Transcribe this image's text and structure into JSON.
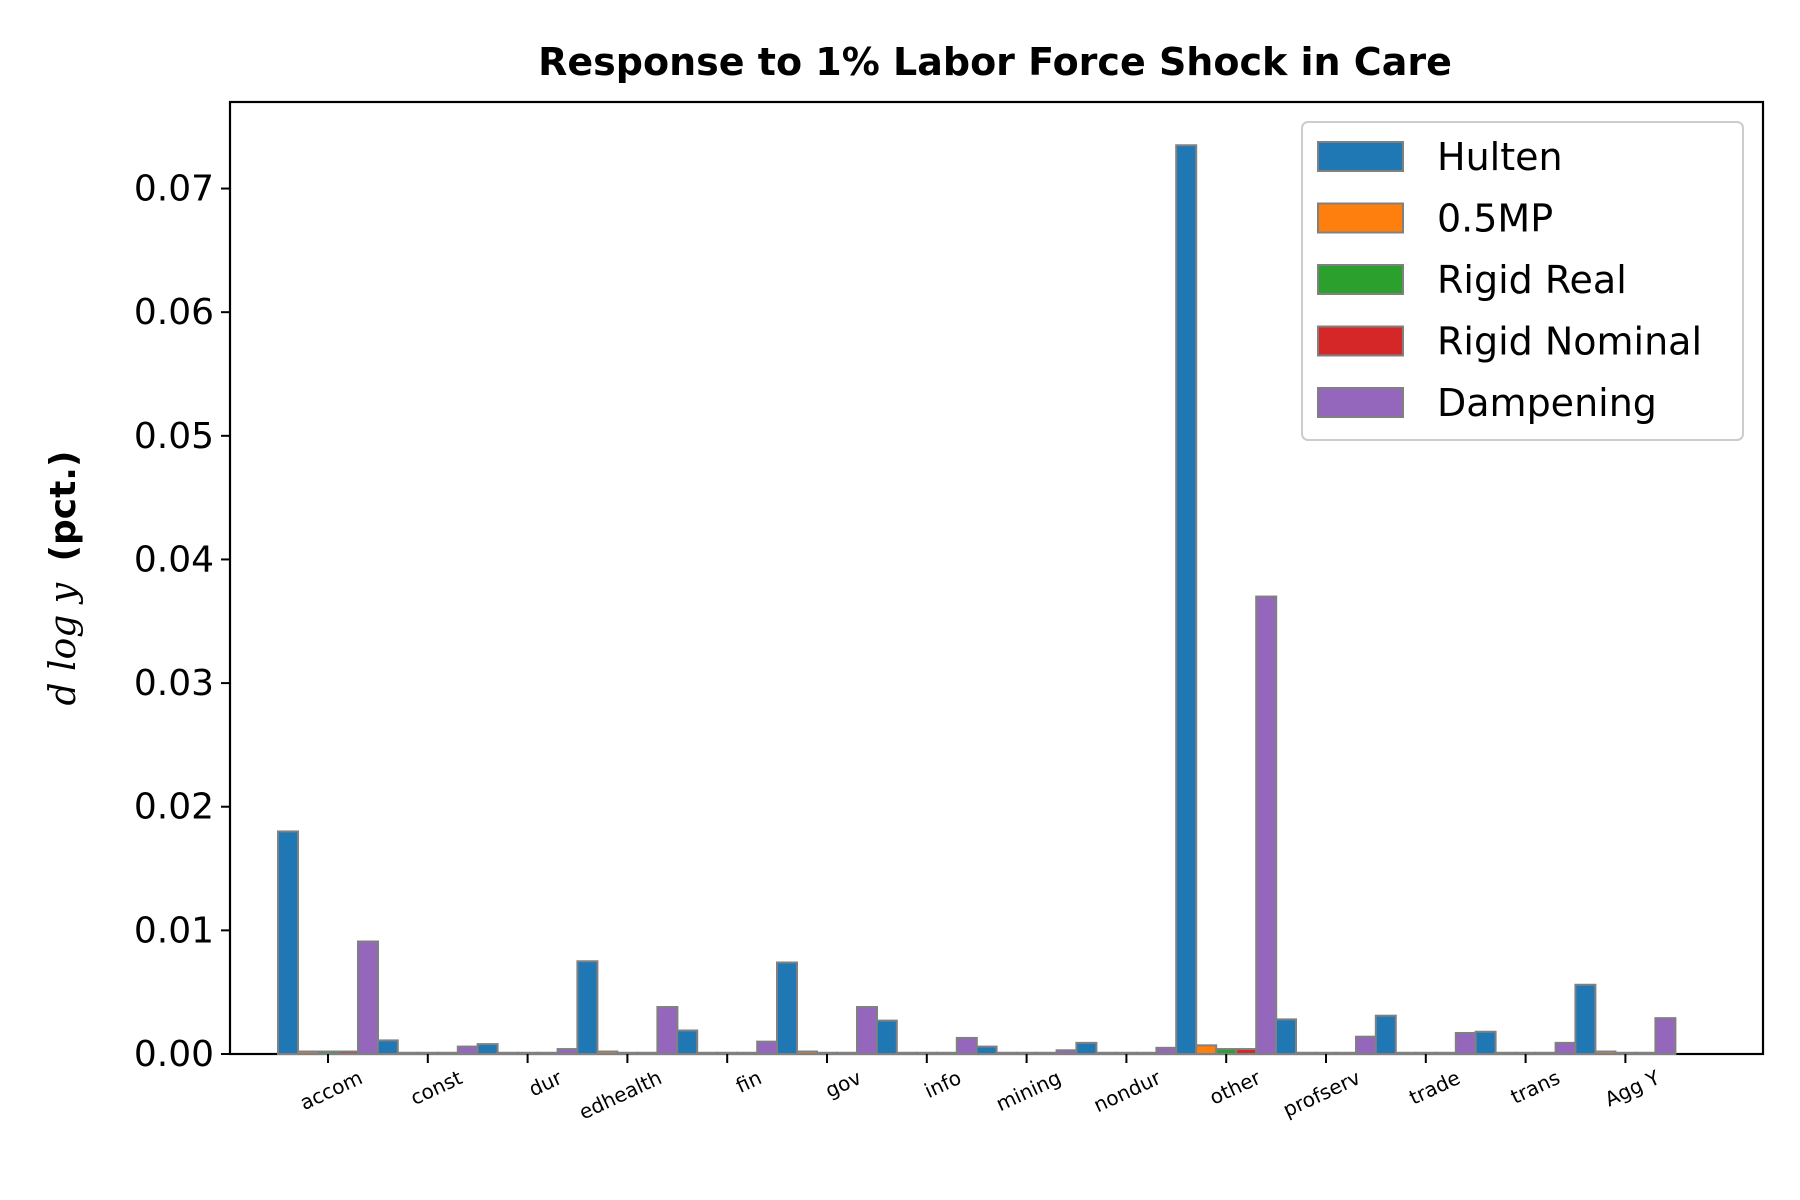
{
  "chart_data": {
    "type": "bar",
    "title": "Response to 1% Labor Force Shock in Care",
    "ylabel_math": "d log y",
    "ylabel_text": "(pct.)",
    "ylim": [
      0,
      0.077
    ],
    "yticks": [
      "0.00",
      "0.01",
      "0.02",
      "0.03",
      "0.04",
      "0.05",
      "0.06",
      "0.07"
    ],
    "ytick_values": [
      0,
      0.01,
      0.02,
      0.03,
      0.04,
      0.05,
      0.06,
      0.07
    ],
    "categories": [
      "accom",
      "const",
      "dur",
      "edhealth",
      "fin",
      "gov",
      "info",
      "mining",
      "nondur",
      "other",
      "profserv",
      "trade",
      "trans",
      "Agg Y"
    ],
    "series": [
      {
        "name": "Hulten",
        "color": "#1f77b4",
        "values": [
          0.018,
          0.0011,
          0.0008,
          0.0075,
          0.0019,
          0.0074,
          0.0027,
          0.0006,
          0.0009,
          0.0735,
          0.0028,
          0.0031,
          0.0018,
          0.0056
        ]
      },
      {
        "name": "0.5MP",
        "color": "#ff7f0e",
        "values": [
          0.0002,
          0.0001,
          0.0001,
          0.0002,
          0.0001,
          0.0002,
          0.0001,
          0.0001,
          0.0001,
          0.0007,
          0.0001,
          0.0001,
          0.0001,
          0.0002
        ]
      },
      {
        "name": "Rigid Real",
        "color": "#2ca02c",
        "values": [
          0.0002,
          0.0001,
          0.0001,
          0.0001,
          0.0001,
          0.0001,
          0.0001,
          0.0001,
          0.0001,
          0.0004,
          0.0001,
          0.0001,
          0.0001,
          0.0001
        ]
      },
      {
        "name": "Rigid Nominal",
        "color": "#d62728",
        "values": [
          0.0002,
          0.0001,
          0.0001,
          0.0001,
          0.0001,
          0.0001,
          0.0001,
          0.0001,
          0.0001,
          0.0004,
          0.0001,
          0.0001,
          0.0001,
          0.0001
        ]
      },
      {
        "name": "Dampening",
        "color": "#9467bd",
        "values": [
          0.0091,
          0.0006,
          0.0004,
          0.0038,
          0.001,
          0.0038,
          0.0013,
          0.0003,
          0.0005,
          0.037,
          0.0014,
          0.0017,
          0.0009,
          0.0029
        ]
      }
    ],
    "legend_position": "upper-right",
    "grid": false
  }
}
